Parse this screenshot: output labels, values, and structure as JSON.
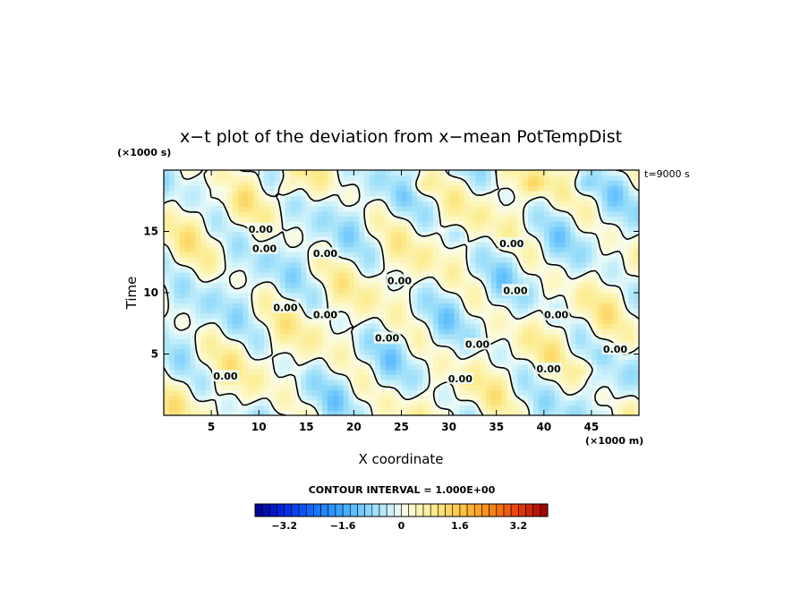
{
  "chart_data": {
    "type": "heatmap",
    "title": "x−t plot of the deviation from x−mean PotTempDist",
    "xlabel": "X coordinate",
    "ylabel": "Time",
    "x_unit": "(×1000 m)",
    "y_unit": "(×1000 s)",
    "time_annotation": "t=9000 s",
    "contour_interval_label": "CONTOUR INTERVAL = 1.000E+00",
    "contour_label": "0.00",
    "xlim": [
      0,
      50
    ],
    "ylim": [
      0,
      20
    ],
    "x_ticks": [
      5,
      10,
      15,
      20,
      25,
      30,
      35,
      40,
      45
    ],
    "x_tick_labels": [
      "5",
      "10",
      "15",
      "20",
      "25",
      "30",
      "35",
      "40",
      "45"
    ],
    "y_ticks": [
      5,
      10,
      15
    ],
    "y_tick_labels": [
      "5",
      "10",
      "15"
    ],
    "colorbar": {
      "range": [
        -4.0,
        4.0
      ],
      "bin_count": 40,
      "tick_values": [
        -3.2,
        -1.6,
        0,
        1.6,
        3.2
      ],
      "tick_labels": [
        "−3.2",
        "−1.6",
        "0",
        "1.6",
        "3.2"
      ]
    },
    "zero_contour_label_points": [
      [
        6.5,
        3.2
      ],
      [
        10.6,
        13.6
      ],
      [
        10.2,
        15.2
      ],
      [
        17,
        13.2
      ],
      [
        12.8,
        8.8
      ],
      [
        17,
        8.2
      ],
      [
        24.8,
        11
      ],
      [
        23.5,
        6.3
      ],
      [
        31.2,
        3.0
      ],
      [
        33,
        5.8
      ],
      [
        36.6,
        14
      ],
      [
        37,
        10.2
      ],
      [
        41.3,
        8.2
      ],
      [
        40.5,
        3.8
      ],
      [
        47.5,
        5.4
      ]
    ]
  }
}
